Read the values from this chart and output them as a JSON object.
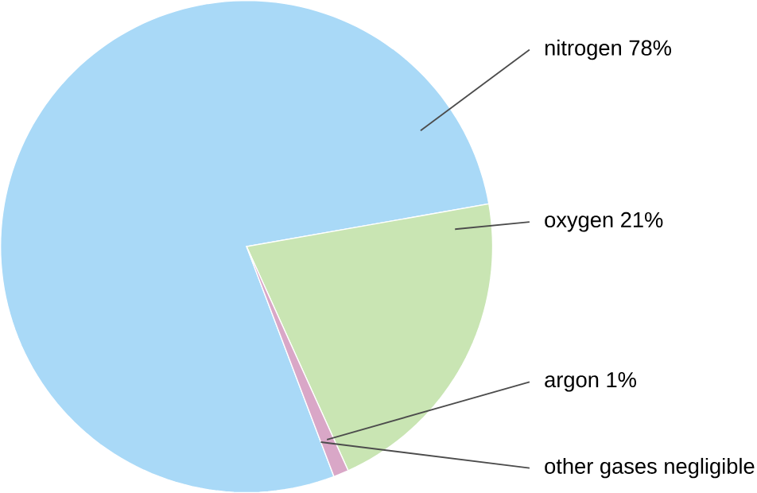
{
  "chart_data": {
    "type": "pie",
    "categories": [
      "nitrogen 78%",
      "oxygen 21%",
      "argon 1%",
      "other gases negligible"
    ],
    "values": [
      78,
      21,
      1,
      null
    ],
    "colors": [
      "#a9d9f7",
      "#c9e5b3",
      "#d9a7c7",
      "#b0b0b0"
    ]
  }
}
